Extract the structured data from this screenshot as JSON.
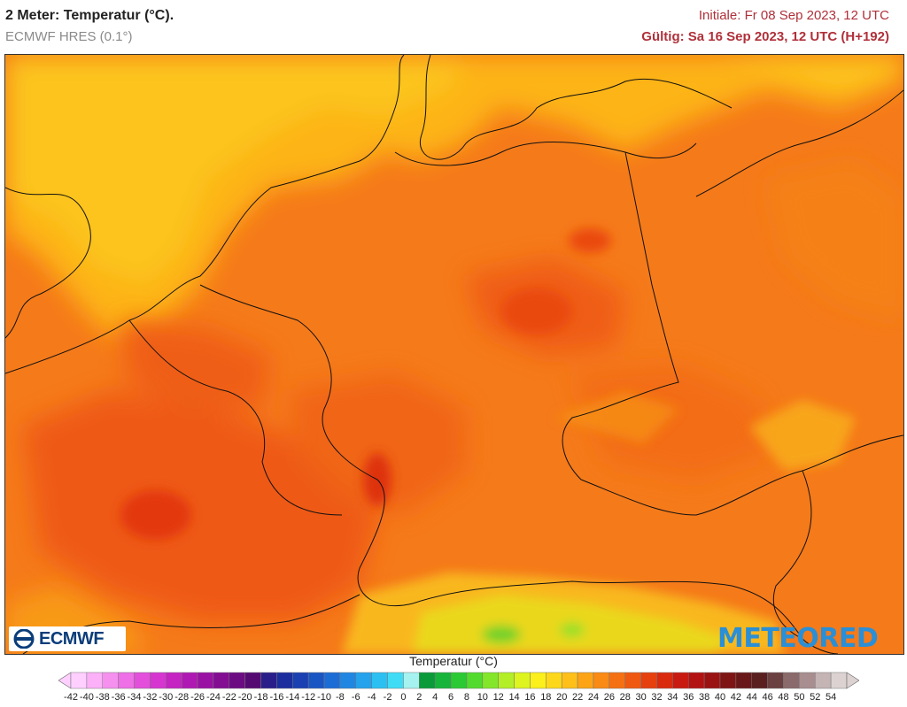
{
  "header": {
    "title": "2 Meter: Temperatur (°C).",
    "subtitle": "ECMWF HRES (0.1°)",
    "initial": "Initiale: Fr 08 Sep 2023, 12 UTC",
    "valid": "Gültig: Sa 16 Sep 2023, 12 UTC (H+192)"
  },
  "logos": {
    "left": "ECMWF",
    "right": "METEORED"
  },
  "legend": {
    "title": "Temperatur (°C)",
    "ticks": [
      "-42",
      "-40",
      "-38",
      "-36",
      "-34",
      "-32",
      "-30",
      "-28",
      "-26",
      "-24",
      "-22",
      "-20",
      "-18",
      "-16",
      "-14",
      "-12",
      "-10",
      "-8",
      "-6",
      "-4",
      "-2",
      "0",
      "2",
      "4",
      "6",
      "8",
      "10",
      "12",
      "14",
      "16",
      "18",
      "20",
      "22",
      "24",
      "26",
      "28",
      "30",
      "32",
      "34",
      "36",
      "38",
      "40",
      "42",
      "44",
      "46",
      "48",
      "50",
      "52",
      "54"
    ],
    "colors": [
      "#ffd0ff",
      "#fbb0f8",
      "#f590ef",
      "#ee6fe6",
      "#e34fdb",
      "#d635d0",
      "#c523c2",
      "#b018b3",
      "#9a12a3",
      "#830e92",
      "#6c0c82",
      "#550a72",
      "#2a1e8a",
      "#1c2e9e",
      "#1a40b2",
      "#1a55c4",
      "#1c6cd6",
      "#1f86e2",
      "#24a2ec",
      "#2cc0f2",
      "#40dcf6",
      "#a6f2f0",
      "#0a9a3a",
      "#16b43a",
      "#2bca34",
      "#52db2e",
      "#84e62a",
      "#b4ee26",
      "#ddf41f",
      "#fbef1c",
      "#fdd81a",
      "#fdbf18",
      "#fca416",
      "#f98a14",
      "#f57012",
      "#ef5810",
      "#e6400e",
      "#d92a0e",
      "#c81a10",
      "#b31212",
      "#9a1212",
      "#7f1414",
      "#681818",
      "#5a2020",
      "#6b4040",
      "#8a6a6a",
      "#a88e8e",
      "#c4b4b4",
      "#dcd2d2"
    ]
  }
}
